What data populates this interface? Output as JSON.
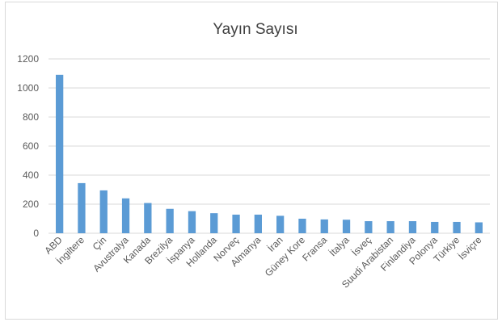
{
  "chart_data": {
    "type": "bar",
    "title": "Yayın Sayısı",
    "xlabel": "",
    "ylabel": "",
    "categories": [
      "ABD",
      "İngiltere",
      "Çin",
      "Avustralya",
      "Kanada",
      "Brezilya",
      "İspanya",
      "Hollanda",
      "Norveç",
      "Almanya",
      "İran",
      "Güney Kore",
      "Fransa",
      "İtalya",
      "İsveç",
      "Suudi Arabistan",
      "Finlandiya",
      "Polonya",
      "Türkiye",
      "İsviçre"
    ],
    "values": [
      1090,
      345,
      295,
      240,
      208,
      168,
      152,
      138,
      128,
      128,
      120,
      100,
      95,
      93,
      83,
      83,
      83,
      78,
      78,
      75
    ],
    "ylim": [
      0,
      1200
    ],
    "yticks": [
      "0",
      "200",
      "400",
      "600",
      "800",
      "1000",
      "1200"
    ],
    "grid": true,
    "legend": "none",
    "bar_color": "#5b9bd5"
  }
}
